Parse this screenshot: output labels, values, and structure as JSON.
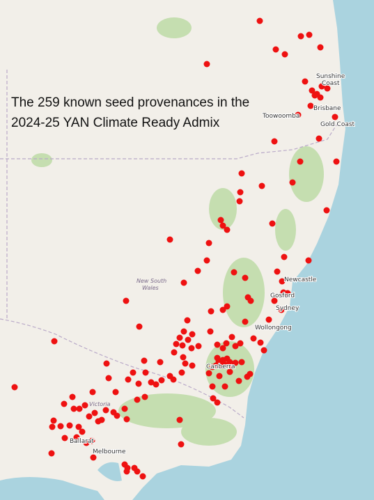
{
  "title": {
    "line1": "The 259 known seed provenances in the",
    "line2": "2024-25 YAN Climate Ready Admix"
  },
  "places": {
    "sunshine_coast": [
      "Sunshine",
      "Coast"
    ],
    "brisbane": "Brisbane",
    "toowoomba": "Toowoomba",
    "gold_coast": "Gold Coast",
    "new_south_wales": [
      "New South",
      "Wales"
    ],
    "newcastle": "Newcastle",
    "gosford": "Gosford",
    "sydney": "Sydney",
    "wollongong": "Wollongong",
    "canberra": "Canberra",
    "victoria": "Victoria",
    "ballarat": "Ballarat",
    "melbourne": "Melbourne"
  }
}
